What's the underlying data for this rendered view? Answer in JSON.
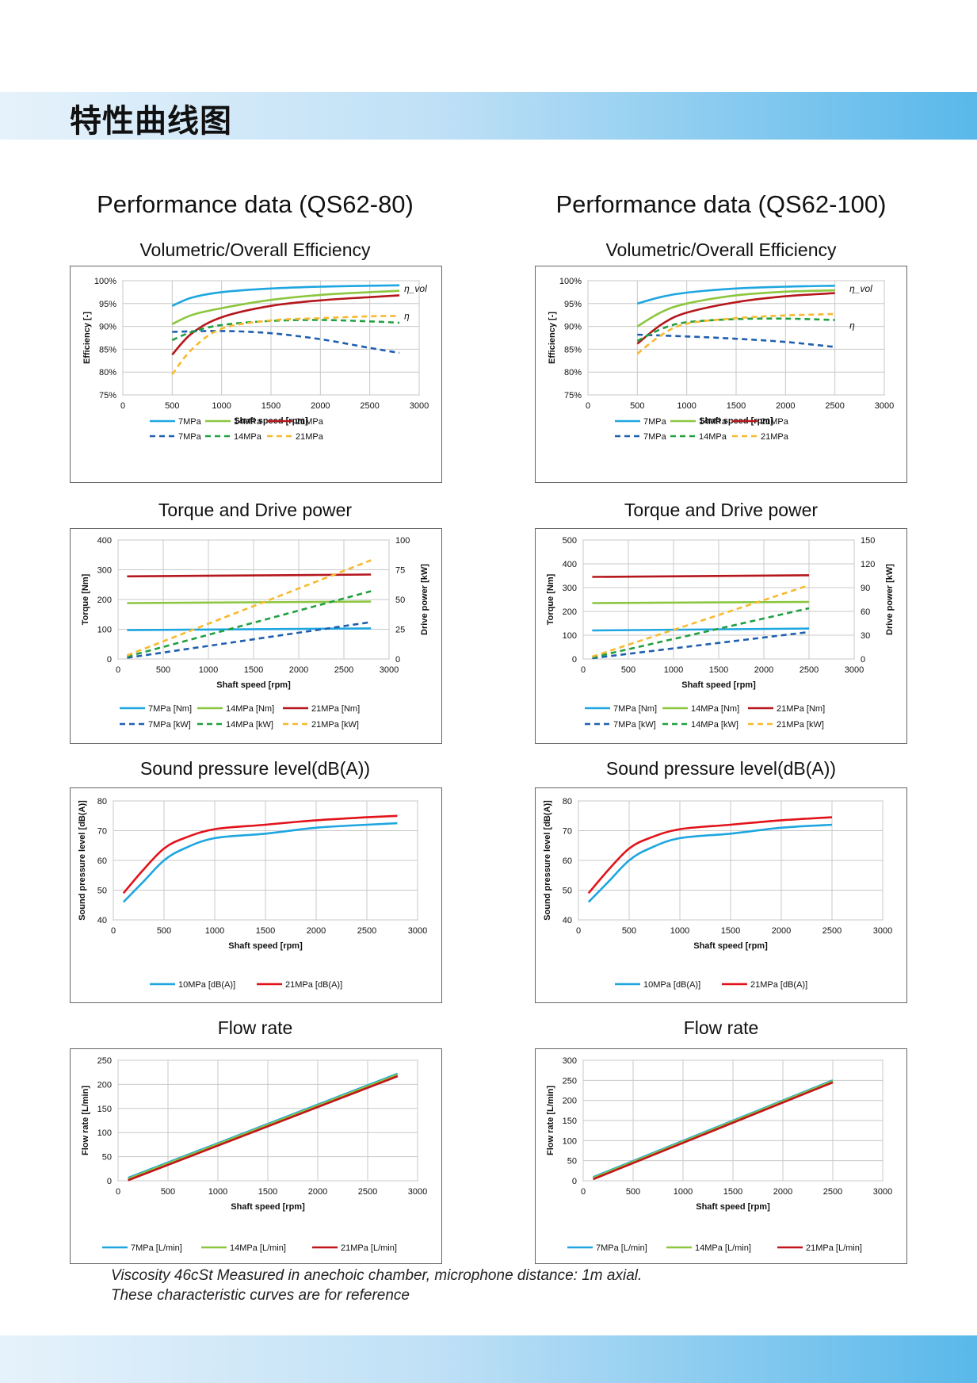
{
  "page": {
    "heading": "特性曲线图",
    "footnote_line1": "Viscosity 46cSt Measured in anechoic chamber,  microphone distance: 1m axial.",
    "footnote_line2": "These characteristic curves are  for reference",
    "band_color": "#59b8ea"
  },
  "columns": [
    {
      "title": "Performance data (QS62-80)"
    },
    {
      "title": "Performance data (QS62-100)"
    }
  ],
  "chart_titles": {
    "efficiency": "Volumetric/Overall Efficiency",
    "torque": "Torque and Drive power",
    "sound": "Sound pressure level(dB(A))",
    "flow": "Flow rate"
  },
  "chart_data": [
    {
      "id": "eff-80",
      "type": "line",
      "title": "Volumetric/Overall Efficiency",
      "xlabel": "Shaft speed [rpm]",
      "ylabel": "Efficiency [-]",
      "xlim": [
        0,
        3000
      ],
      "xticks": [
        0,
        500,
        1000,
        1500,
        2000,
        2500,
        3000
      ],
      "ylim": [
        75,
        100
      ],
      "yticks": [
        75,
        80,
        85,
        90,
        95,
        100
      ],
      "ytick_labels": [
        "75%",
        "80%",
        "85%",
        "90%",
        "95%",
        "100%"
      ],
      "grid": true,
      "legend_placement": "bottom",
      "annotations": [
        {
          "text": "η_vol",
          "x": 2800,
          "y": 98.3
        },
        {
          "text": "η",
          "x": 2800,
          "y": 92.3
        }
      ],
      "series": [
        {
          "name": "7MPa",
          "color": "#1ea6e0",
          "dash": false,
          "x": [
            500,
            700,
            1000,
            1500,
            2000,
            2500,
            2800
          ],
          "y": [
            94.5,
            96.3,
            97.5,
            98.3,
            98.7,
            98.9,
            99.0
          ]
        },
        {
          "name": "14MPa",
          "color": "#8cc63f",
          "dash": false,
          "x": [
            500,
            700,
            1000,
            1500,
            2000,
            2500,
            2800
          ],
          "y": [
            90.5,
            92.5,
            94.0,
            95.8,
            96.9,
            97.5,
            97.8
          ]
        },
        {
          "name": "21MPa",
          "color": "#b5171c",
          "dash": false,
          "x": [
            500,
            700,
            1000,
            1500,
            2000,
            2500,
            2800
          ],
          "y": [
            83.8,
            88.5,
            92.0,
            94.5,
            95.7,
            96.4,
            96.8
          ]
        },
        {
          "name": "7MPa",
          "color": "#1f5fae",
          "dash": true,
          "x": [
            500,
            1000,
            1500,
            2000,
            2500,
            2800
          ],
          "y": [
            88.8,
            89.0,
            88.5,
            87.2,
            85.3,
            84.2
          ]
        },
        {
          "name": "14MPa",
          "color": "#21a040",
          "dash": true,
          "x": [
            500,
            700,
            1000,
            1500,
            2000,
            2500,
            2800
          ],
          "y": [
            87.0,
            88.8,
            90.3,
            91.2,
            91.4,
            91.1,
            90.8
          ]
        },
        {
          "name": "21MPa",
          "color": "#f7b92e",
          "dash": true,
          "x": [
            500,
            700,
            1000,
            1500,
            2000,
            2500,
            2800
          ],
          "y": [
            79.5,
            85.0,
            89.5,
            91.3,
            91.8,
            92.2,
            92.3
          ]
        }
      ]
    },
    {
      "id": "eff-100",
      "type": "line",
      "title": "Volumetric/Overall Efficiency",
      "xlabel": "Shaft speed [rpm]",
      "ylabel": "Efficiency [-]",
      "xlim": [
        0,
        3000
      ],
      "xticks": [
        0,
        500,
        1000,
        1500,
        2000,
        2500,
        3000
      ],
      "ylim": [
        75,
        100
      ],
      "yticks": [
        75,
        80,
        85,
        90,
        95,
        100
      ],
      "ytick_labels": [
        "75%",
        "80%",
        "85%",
        "90%",
        "95%",
        "100%"
      ],
      "grid": true,
      "legend_placement": "bottom",
      "annotations": [
        {
          "text": "η_vol",
          "x": 2600,
          "y": 98.3
        },
        {
          "text": "η",
          "x": 2600,
          "y": 90.2
        }
      ],
      "series": [
        {
          "name": "7MPa",
          "color": "#1ea6e0",
          "dash": false,
          "x": [
            500,
            750,
            1000,
            1500,
            2000,
            2500
          ],
          "y": [
            95.0,
            96.5,
            97.4,
            98.3,
            98.7,
            98.9
          ]
        },
        {
          "name": "14MPa",
          "color": "#8cc63f",
          "dash": false,
          "x": [
            500,
            750,
            1000,
            1500,
            2000,
            2500
          ],
          "y": [
            90.0,
            93.2,
            95.0,
            96.8,
            97.6,
            97.9
          ]
        },
        {
          "name": "21MPa",
          "color": "#b5171c",
          "dash": false,
          "x": [
            500,
            750,
            1000,
            1500,
            2000,
            2500
          ],
          "y": [
            86.2,
            90.5,
            93.0,
            95.3,
            96.6,
            97.3
          ]
        },
        {
          "name": "7MPa",
          "color": "#1f5fae",
          "dash": true,
          "x": [
            500,
            1000,
            1500,
            2000,
            2500
          ],
          "y": [
            88.2,
            87.8,
            87.3,
            86.6,
            85.5
          ]
        },
        {
          "name": "14MPa",
          "color": "#21a040",
          "dash": true,
          "x": [
            500,
            750,
            1000,
            1500,
            2000,
            2500
          ],
          "y": [
            86.8,
            89.5,
            90.9,
            91.6,
            91.7,
            91.4
          ]
        },
        {
          "name": "21MPa",
          "color": "#f7b92e",
          "dash": true,
          "x": [
            500,
            750,
            1000,
            1500,
            2000,
            2500
          ],
          "y": [
            84.0,
            88.2,
            90.6,
            91.8,
            92.4,
            92.7
          ]
        }
      ]
    },
    {
      "id": "torque-80",
      "type": "line",
      "title": "Torque and Drive power",
      "xlabel": "Shaft speed [rpm]",
      "ylabel": "Torque [Nm]",
      "y2label": "Drive power [kW]",
      "xlim": [
        0,
        3000
      ],
      "xticks": [
        0,
        500,
        1000,
        1500,
        2000,
        2500,
        3000
      ],
      "ylim": [
        0,
        400
      ],
      "yticks": [
        0,
        100,
        200,
        300,
        400
      ],
      "y2lim": [
        0,
        100
      ],
      "y2ticks": [
        0,
        25,
        50,
        75,
        100
      ],
      "grid": true,
      "legend_placement": "bottom",
      "series": [
        {
          "name": "7MPa [Nm]",
          "color": "#1ea6e0",
          "dash": false,
          "axis": "left",
          "x": [
            100,
            2800
          ],
          "y": [
            97,
            103
          ]
        },
        {
          "name": "14MPa [Nm]",
          "color": "#8cc63f",
          "dash": false,
          "axis": "left",
          "x": [
            100,
            2800
          ],
          "y": [
            188,
            193
          ]
        },
        {
          "name": "21MPa [Nm]",
          "color": "#b5171c",
          "dash": false,
          "axis": "left",
          "x": [
            100,
            2800
          ],
          "y": [
            278,
            284
          ]
        },
        {
          "name": "7MPa [kW]",
          "color": "#1f5fae",
          "dash": true,
          "axis": "right",
          "x": [
            100,
            2800
          ],
          "y": [
            1,
            31
          ]
        },
        {
          "name": "14MPa [kW]",
          "color": "#21a040",
          "dash": true,
          "axis": "right",
          "x": [
            100,
            2800
          ],
          "y": [
            2,
            57
          ]
        },
        {
          "name": "21MPa [kW]",
          "color": "#f7b92e",
          "dash": true,
          "axis": "right",
          "x": [
            100,
            2800
          ],
          "y": [
            3,
            83
          ]
        }
      ]
    },
    {
      "id": "torque-100",
      "type": "line",
      "title": "Torque and Drive power",
      "xlabel": "Shaft speed [rpm]",
      "ylabel": "Torque [Nm]",
      "y2label": "Drive power [kW]",
      "xlim": [
        0,
        3000
      ],
      "xticks": [
        0,
        500,
        1000,
        1500,
        2000,
        2500,
        3000
      ],
      "ylim": [
        0,
        500
      ],
      "yticks": [
        0,
        100,
        200,
        300,
        400,
        500
      ],
      "y2lim": [
        0,
        150
      ],
      "y2ticks": [
        0,
        30,
        60,
        90,
        120,
        150
      ],
      "grid": true,
      "legend_placement": "bottom",
      "series": [
        {
          "name": "7MPa [Nm]",
          "color": "#1ea6e0",
          "dash": false,
          "axis": "left",
          "x": [
            100,
            2500
          ],
          "y": [
            120,
            128
          ]
        },
        {
          "name": "14MPa [Nm]",
          "color": "#8cc63f",
          "dash": false,
          "axis": "left",
          "x": [
            100,
            2500
          ],
          "y": [
            235,
            240
          ]
        },
        {
          "name": "21MPa [Nm]",
          "color": "#b5171c",
          "dash": false,
          "axis": "left",
          "x": [
            100,
            2500
          ],
          "y": [
            345,
            352
          ]
        },
        {
          "name": "7MPa [kW]",
          "color": "#1f5fae",
          "dash": true,
          "axis": "right",
          "x": [
            100,
            2500
          ],
          "y": [
            1,
            34
          ]
        },
        {
          "name": "14MPa [kW]",
          "color": "#21a040",
          "dash": true,
          "axis": "right",
          "x": [
            100,
            2500
          ],
          "y": [
            2,
            64
          ]
        },
        {
          "name": "21MPa [kW]",
          "color": "#f7b92e",
          "dash": true,
          "axis": "right",
          "x": [
            100,
            2500
          ],
          "y": [
            3,
            93
          ]
        }
      ]
    },
    {
      "id": "sound-80",
      "type": "line",
      "title": "Sound pressure level(dB(A))",
      "xlabel": "Shaft speed [rpm]",
      "ylabel": "Sound pressure level  [dB(A)]",
      "xlim": [
        0,
        3000
      ],
      "xticks": [
        0,
        500,
        1000,
        1500,
        2000,
        2500,
        3000
      ],
      "ylim": [
        40,
        80
      ],
      "yticks": [
        40,
        50,
        60,
        70,
        80
      ],
      "grid": true,
      "legend_placement": "bottom",
      "series": [
        {
          "name": "10MPa [dB(A)]",
          "color": "#1ea6e0",
          "dash": false,
          "x": [
            100,
            300,
            500,
            700,
            1000,
            1500,
            2000,
            2500,
            2800
          ],
          "y": [
            46,
            53,
            60,
            64,
            67.5,
            69,
            71,
            72,
            72.5
          ]
        },
        {
          "name": "21MPa  [dB(A)]",
          "color": "#e2121a",
          "dash": false,
          "x": [
            100,
            300,
            500,
            700,
            1000,
            1500,
            2000,
            2500,
            2800
          ],
          "y": [
            49,
            57,
            64,
            67.5,
            70.5,
            72,
            73.5,
            74.5,
            75
          ]
        }
      ]
    },
    {
      "id": "sound-100",
      "type": "line",
      "title": "Sound pressure level(dB(A))",
      "xlabel": "Shaft speed [rpm]",
      "ylabel": "Sound pressure level  [dB(A)]",
      "xlim": [
        0,
        3000
      ],
      "xticks": [
        0,
        500,
        1000,
        1500,
        2000,
        2500,
        3000
      ],
      "ylim": [
        40,
        80
      ],
      "yticks": [
        40,
        50,
        60,
        70,
        80
      ],
      "grid": true,
      "legend_placement": "bottom",
      "series": [
        {
          "name": "10MPa [dB(A)]",
          "color": "#1ea6e0",
          "dash": false,
          "x": [
            100,
            300,
            500,
            700,
            1000,
            1500,
            2000,
            2500
          ],
          "y": [
            46,
            53,
            60,
            64,
            67.5,
            69,
            71,
            72
          ]
        },
        {
          "name": "21MPa  [dB(A)]",
          "color": "#e2121a",
          "dash": false,
          "x": [
            100,
            300,
            500,
            700,
            1000,
            1500,
            2000,
            2500
          ],
          "y": [
            49,
            57,
            64,
            67.5,
            70.5,
            72,
            73.5,
            74.5
          ]
        }
      ]
    },
    {
      "id": "flow-80",
      "type": "line",
      "title": "Flow rate",
      "xlabel": "Shaft speed [rpm]",
      "ylabel": "Flow rate [L/min]",
      "xlim": [
        0,
        3000
      ],
      "xticks": [
        0,
        500,
        1000,
        1500,
        2000,
        2500,
        3000
      ],
      "ylim": [
        0,
        250
      ],
      "yticks": [
        0,
        50,
        100,
        150,
        200,
        250
      ],
      "grid": true,
      "legend_placement": "bottom",
      "series": [
        {
          "name": "7MPa [L/min]",
          "color": "#1ea6e0",
          "dash": false,
          "x": [
            100,
            2800
          ],
          "y": [
            6,
            222
          ]
        },
        {
          "name": "14MPa [L/min]",
          "color": "#8cc63f",
          "dash": false,
          "x": [
            100,
            2800
          ],
          "y": [
            4,
            220
          ]
        },
        {
          "name": "21MPa [L/min]",
          "color": "#c0151b",
          "dash": false,
          "x": [
            100,
            2800
          ],
          "y": [
            1,
            217
          ]
        }
      ]
    },
    {
      "id": "flow-100",
      "type": "line",
      "title": "Flow rate",
      "xlabel": "Shaft speed [rpm]",
      "ylabel": "Flow rate [L/min]",
      "xlim": [
        0,
        3000
      ],
      "xticks": [
        0,
        500,
        1000,
        1500,
        2000,
        2500,
        3000
      ],
      "ylim": [
        0,
        300
      ],
      "yticks": [
        0,
        50,
        100,
        150,
        200,
        250,
        300
      ],
      "grid": true,
      "legend_placement": "bottom",
      "series": [
        {
          "name": "7MPa [L/min]",
          "color": "#1ea6e0",
          "dash": false,
          "x": [
            100,
            2500
          ],
          "y": [
            9,
            250
          ]
        },
        {
          "name": "14MPa [L/min]",
          "color": "#8cc63f",
          "dash": false,
          "x": [
            100,
            2500
          ],
          "y": [
            7,
            248
          ]
        },
        {
          "name": "21MPa [L/min]",
          "color": "#c0151b",
          "dash": false,
          "x": [
            100,
            2500
          ],
          "y": [
            4,
            245
          ]
        }
      ]
    }
  ]
}
